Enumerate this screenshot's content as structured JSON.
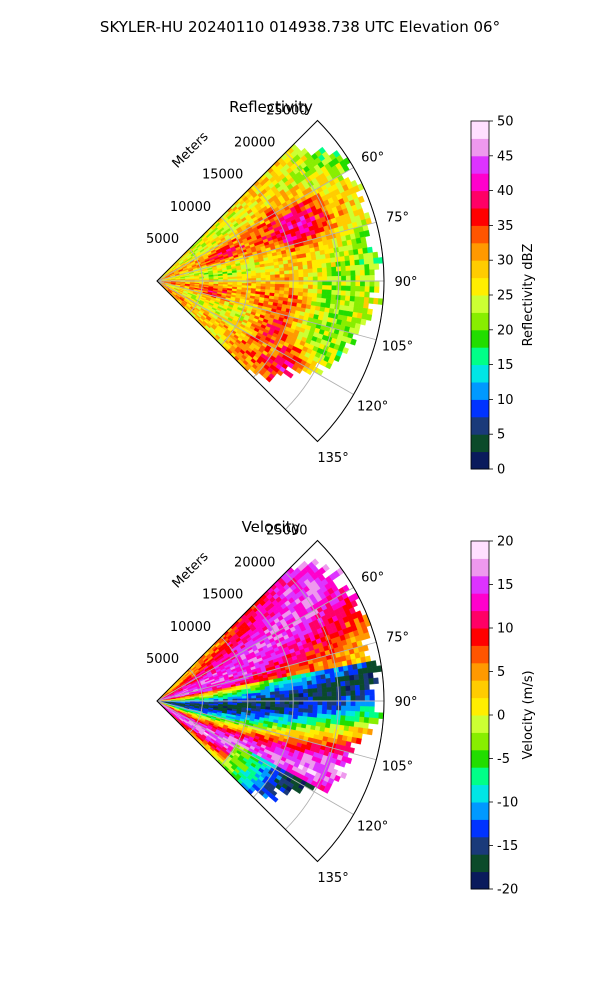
{
  "figure": {
    "suptitle": "SKYLER-HU  20240110  014938.738 UTC Elevation 06°"
  },
  "chart_data": [
    {
      "type": "heatmap",
      "subtype": "polar-ppi-sector",
      "title": "Reflectivity",
      "range_label": "Meters",
      "range_ticks": [
        5000,
        10000,
        15000,
        20000,
        25000
      ],
      "range_max": 25000,
      "azimuth_ticks": [
        "60°",
        "75°",
        "90°",
        "105°",
        "120°",
        "135°"
      ],
      "azimuth_tick_values": [
        60,
        75,
        90,
        105,
        120,
        135
      ],
      "azimuth_limits": [
        45,
        135
      ],
      "grid": true,
      "colorbar": {
        "label": "Reflectivity dBZ",
        "min": 0,
        "max": 50,
        "ticks": [
          0,
          5,
          10,
          15,
          20,
          25,
          30,
          35,
          40,
          45,
          50
        ],
        "colormap": "pyart_HomeyerRainbow"
      },
      "field_description_values": {
        "dominant_range_dbz": [
          25,
          35
        ],
        "peak_dbz": 38
      }
    },
    {
      "type": "heatmap",
      "subtype": "polar-ppi-sector",
      "title": "Velocity",
      "range_label": "Meters",
      "range_ticks": [
        5000,
        10000,
        15000,
        20000,
        25000
      ],
      "range_max": 25000,
      "azimuth_ticks": [
        "60°",
        "75°",
        "90°",
        "105°",
        "120°",
        "135°"
      ],
      "azimuth_tick_values": [
        60,
        75,
        90,
        105,
        120,
        135
      ],
      "azimuth_limits": [
        45,
        135
      ],
      "grid": true,
      "colorbar": {
        "label": "Velocity (m/s)",
        "min": -20,
        "max": 20,
        "ticks": [
          -20,
          -15,
          -10,
          -5,
          0,
          5,
          10,
          15,
          20
        ],
        "colormap": "pyart_HomeyerRainbow"
      }
    }
  ],
  "colors": {
    "stops": [
      "#0a1a5c",
      "#0b4a2a",
      "#1a3a7a",
      "#0033ff",
      "#0099ff",
      "#00e5e5",
      "#00ff88",
      "#22dd00",
      "#88ee00",
      "#ccff33",
      "#ffee00",
      "#ffcc00",
      "#ff9900",
      "#ff5500",
      "#ff0000",
      "#ff0066",
      "#ff00cc",
      "#dd33ff",
      "#ee99ee",
      "#ffe0ff"
    ]
  }
}
